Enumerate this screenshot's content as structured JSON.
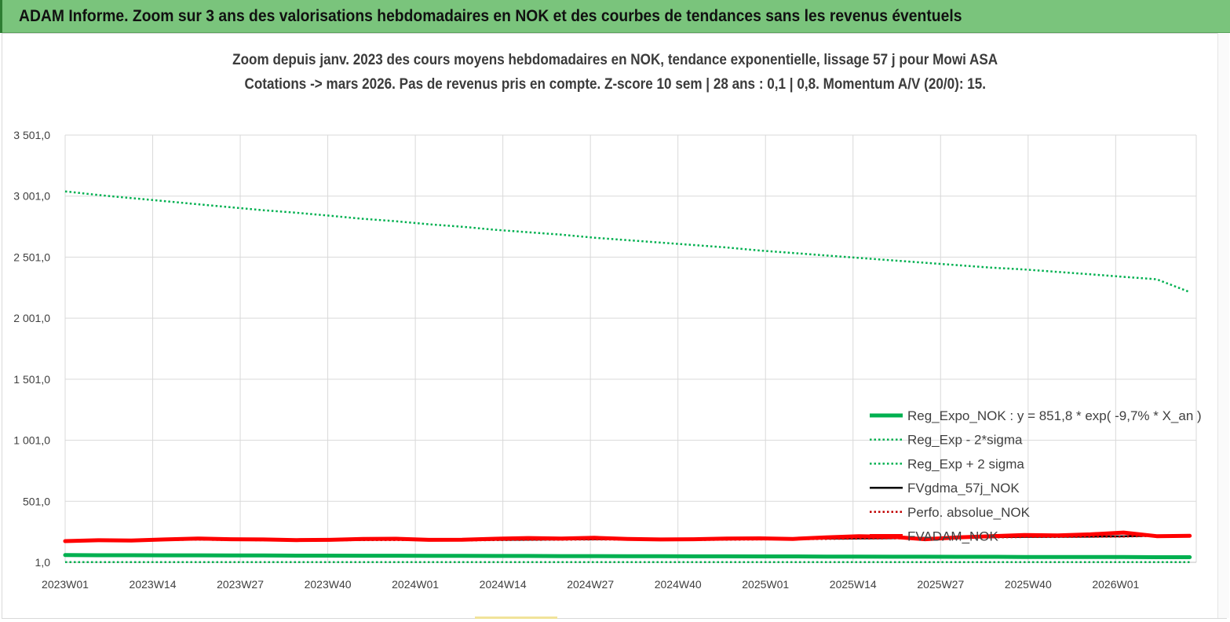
{
  "header": {
    "banner_title": "ADAM Informe. Zoom sur 3 ans des valorisations hebdomadaires en NOK et des courbes de tendances sans les revenus éventuels"
  },
  "chart_data": {
    "type": "line",
    "title_line1": "Zoom depuis janv. 2023 des cours moyens hebdomadaires en NOK, tendance exponentielle, lissage 57 j pour Mowi ASA",
    "title_line2": "Cotations -> mars 2026. Pas de revenus pris en compte. Z-score 10 sem | 28 ans : 0,1 | 0,8. Momentum A/V (20/0): 15.",
    "x_start_week_label": "2023W01",
    "x_tick_labels": [
      "2023W01",
      "2023W14",
      "2023W27",
      "2023W40",
      "2024W01",
      "2024W14",
      "2024W27",
      "2024W40",
      "2025W01",
      "2025W14",
      "2025W27",
      "2025W40",
      "2026W01"
    ],
    "x_tick_interval_weeks": 13,
    "total_weeks": 168,
    "y_tick_labels": [
      "1,0",
      "501,0",
      "1 001,0",
      "1 501,0",
      "2 001,0",
      "2 501,0",
      "3 001,0",
      "3 501,0"
    ],
    "y_tick_values": [
      1,
      501,
      1001,
      1501,
      2001,
      2501,
      3001,
      3501
    ],
    "ylim": [
      1,
      3501
    ],
    "grid": true,
    "legend_position": "bottom-right",
    "series": [
      {
        "name": "Reg_Expo_NOK : y = 851,8 * exp( -9,7% *  X_an )",
        "color": "#00b050",
        "style": "solid-thick",
        "values": [
          60,
          59,
          59,
          58,
          58,
          57,
          57,
          56,
          56,
          55,
          55,
          54,
          54,
          53,
          53,
          52,
          52,
          51,
          51,
          50,
          50,
          49,
          49,
          48,
          48,
          47,
          47,
          46,
          46,
          45,
          45,
          44,
          44,
          43,
          43
        ]
      },
      {
        "name": "Reg_Exp - 2*sigma",
        "color": "#00b050",
        "style": "dotted",
        "values": [
          2,
          2,
          2,
          2,
          2,
          2,
          2,
          2,
          2,
          2,
          2,
          2,
          2,
          2,
          2,
          2,
          2,
          2,
          2,
          2,
          2,
          2,
          2,
          2,
          2,
          2,
          2,
          2,
          2,
          2,
          2,
          2,
          2,
          2,
          2
        ]
      },
      {
        "name": "Reg_Exp + 2 sigma",
        "color": "#00b050",
        "style": "dotted",
        "values": [
          3040,
          3010,
          2985,
          2960,
          2935,
          2910,
          2885,
          2865,
          2840,
          2815,
          2795,
          2770,
          2750,
          2725,
          2705,
          2685,
          2660,
          2640,
          2620,
          2600,
          2580,
          2555,
          2535,
          2515,
          2495,
          2475,
          2455,
          2435,
          2415,
          2400,
          2380,
          2360,
          2340,
          2320,
          2215
        ]
      },
      {
        "name": "FVgdma_57j_NOK",
        "color": "#000000",
        "style": "solid",
        "values": [
          180,
          184,
          183,
          185,
          189,
          186,
          184,
          182,
          183,
          185,
          186,
          184,
          182,
          185,
          187,
          188,
          190,
          189,
          188,
          186,
          188,
          190,
          192,
          195,
          197,
          199,
          201,
          204,
          207,
          210,
          211,
          212,
          214,
          220,
          218
        ]
      },
      {
        "name": "Perfo. absolue_NOK",
        "color": "#c00000",
        "style": "dotted",
        "values": [
          178,
          182,
          181,
          183,
          187,
          184,
          182,
          180,
          181,
          183,
          184,
          182,
          180,
          183,
          185,
          186,
          188,
          187,
          186,
          184,
          186,
          188,
          190,
          193,
          195,
          197,
          199,
          202,
          205,
          208,
          209,
          210,
          212,
          218,
          216
        ]
      },
      {
        "name": "FVADAM_NOK",
        "color": "#ff0000",
        "style": "solid-thick",
        "values": [
          175,
          182,
          180,
          188,
          196,
          190,
          188,
          183,
          185,
          192,
          194,
          185,
          186,
          194,
          200,
          195,
          202,
          192,
          188,
          190,
          195,
          197,
          193,
          205,
          215,
          210,
          190,
          205,
          215,
          225,
          222,
          230,
          245,
          215,
          218
        ]
      }
    ]
  }
}
